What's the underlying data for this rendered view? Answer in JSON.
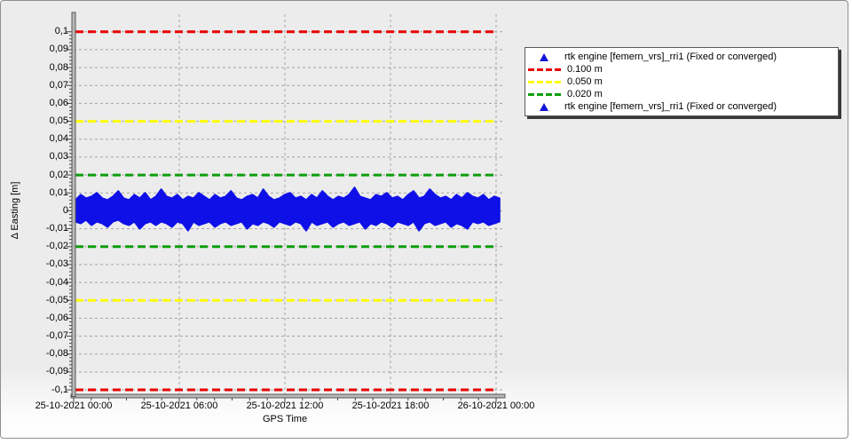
{
  "window": {
    "background": "#ececec"
  },
  "legend": {
    "entries": [
      {
        "type": "marker",
        "color": "#1414dc",
        "label": "rtk engine [femern_vrs]_rri1 (Fixed or converged)"
      },
      {
        "type": "dash",
        "color": "#e80000",
        "label": "0.100 m"
      },
      {
        "type": "dash",
        "color": "#fdfd00",
        "label": "0.050 m"
      },
      {
        "type": "dash",
        "color": "#0c9e0c",
        "label": "0.020 m"
      },
      {
        "type": "marker",
        "color": "#1414dc",
        "label": "rtk engine [femern_vrs]_rri1 (Fixed or converged)"
      }
    ]
  },
  "chart_data": {
    "type": "scatter",
    "title": "",
    "xlabel": "GPS Time",
    "ylabel": "Δ Easting [m]",
    "ylim": [
      -0.1027,
      0.1098
    ],
    "x_range": [
      "25-10-2021 00:00",
      "26-10-2021 00:00"
    ],
    "x_ticks": [
      {
        "t": 0.0,
        "label": "25-10-2021 00:00"
      },
      {
        "t": 0.25,
        "label": "25-10-2021 06:00"
      },
      {
        "t": 0.5,
        "label": "25-10-2021 12:00"
      },
      {
        "t": 0.75,
        "label": "25-10-2021 18:00"
      },
      {
        "t": 1.0,
        "label": "26-10-2021 00:00"
      }
    ],
    "y_ticks": [
      {
        "value": 0.1,
        "label": "0,1"
      },
      {
        "value": 0.09,
        "label": "0,09"
      },
      {
        "value": 0.08,
        "label": "0,08"
      },
      {
        "value": 0.07,
        "label": "0,07"
      },
      {
        "value": 0.06,
        "label": "0,06"
      },
      {
        "value": 0.05,
        "label": "0,05"
      },
      {
        "value": 0.04,
        "label": "0,04"
      },
      {
        "value": 0.03,
        "label": "0,03"
      },
      {
        "value": 0.02,
        "label": "0,02"
      },
      {
        "value": 0.01,
        "label": "0,01"
      },
      {
        "value": 0.0,
        "label": "0"
      },
      {
        "value": -0.01,
        "label": "-0,01"
      },
      {
        "value": -0.02,
        "label": "-0,02"
      },
      {
        "value": -0.03,
        "label": "-0,03"
      },
      {
        "value": -0.04,
        "label": "-0,04"
      },
      {
        "value": -0.05,
        "label": "-0,05"
      },
      {
        "value": -0.06,
        "label": "-0,06"
      },
      {
        "value": -0.07,
        "label": "-0,07"
      },
      {
        "value": -0.08,
        "label": "-0,08"
      },
      {
        "value": -0.09,
        "label": "-0,09"
      },
      {
        "value": -0.1,
        "label": "-0,1"
      }
    ],
    "grid_vertical_t": [
      0.25,
      0.5,
      0.75,
      1.0
    ],
    "threshold_lines": [
      {
        "value": 0.1,
        "color": "#e80000",
        "label": "0.100 m"
      },
      {
        "value": -0.1,
        "color": "#e80000",
        "label": "0.100 m"
      },
      {
        "value": 0.05,
        "color": "#fdfd00",
        "label": "0.050 m"
      },
      {
        "value": -0.05,
        "color": "#fdfd00",
        "label": "0.050 m"
      },
      {
        "value": 0.02,
        "color": "#0c9e0c",
        "label": "0.020 m"
      },
      {
        "value": -0.02,
        "color": "#0c9e0c",
        "label": "0.020 m"
      }
    ],
    "series": [
      {
        "name": "rtk engine [femern_vrs]_rri1 (Fixed or converged)",
        "color": "#0f0fe8",
        "marker": "triangle",
        "center": 0.0,
        "envelope_hi": [
          0.006,
          0.009,
          0.007,
          0.008,
          0.01,
          0.007,
          0.006,
          0.008,
          0.011,
          0.007,
          0.006,
          0.009,
          0.007,
          0.01,
          0.006,
          0.008,
          0.012,
          0.008,
          0.007,
          0.009,
          0.006,
          0.008,
          0.007,
          0.01,
          0.008,
          0.006,
          0.009,
          0.007,
          0.008,
          0.011,
          0.007,
          0.006,
          0.008,
          0.009,
          0.007,
          0.012,
          0.008,
          0.006,
          0.007,
          0.009,
          0.01,
          0.007,
          0.008,
          0.006,
          0.009,
          0.007,
          0.011,
          0.008,
          0.006,
          0.008,
          0.007,
          0.009,
          0.013,
          0.008,
          0.007,
          0.006,
          0.009,
          0.008,
          0.01,
          0.007,
          0.008,
          0.006,
          0.009,
          0.011,
          0.007,
          0.008,
          0.012,
          0.009,
          0.007,
          0.008,
          0.006,
          0.009,
          0.007,
          0.01,
          0.008,
          0.007,
          0.009,
          0.006,
          0.008,
          0.007
        ],
        "envelope_lo": [
          -0.006,
          -0.007,
          -0.005,
          -0.008,
          -0.006,
          -0.007,
          -0.009,
          -0.006,
          -0.005,
          -0.007,
          -0.008,
          -0.006,
          -0.01,
          -0.007,
          -0.006,
          -0.008,
          -0.006,
          -0.007,
          -0.009,
          -0.006,
          -0.007,
          -0.011,
          -0.006,
          -0.008,
          -0.007,
          -0.006,
          -0.009,
          -0.007,
          -0.006,
          -0.008,
          -0.007,
          -0.006,
          -0.01,
          -0.007,
          -0.008,
          -0.006,
          -0.007,
          -0.009,
          -0.006,
          -0.007,
          -0.008,
          -0.006,
          -0.007,
          -0.011,
          -0.006,
          -0.008,
          -0.007,
          -0.006,
          -0.009,
          -0.007,
          -0.006,
          -0.008,
          -0.007,
          -0.006,
          -0.01,
          -0.007,
          -0.008,
          -0.006,
          -0.007,
          -0.009,
          -0.006,
          -0.007,
          -0.008,
          -0.006,
          -0.011,
          -0.007,
          -0.006,
          -0.008,
          -0.007,
          -0.006,
          -0.009,
          -0.007,
          -0.008,
          -0.01,
          -0.006,
          -0.007,
          -0.006,
          -0.008,
          -0.007,
          -0.006
        ]
      }
    ]
  }
}
